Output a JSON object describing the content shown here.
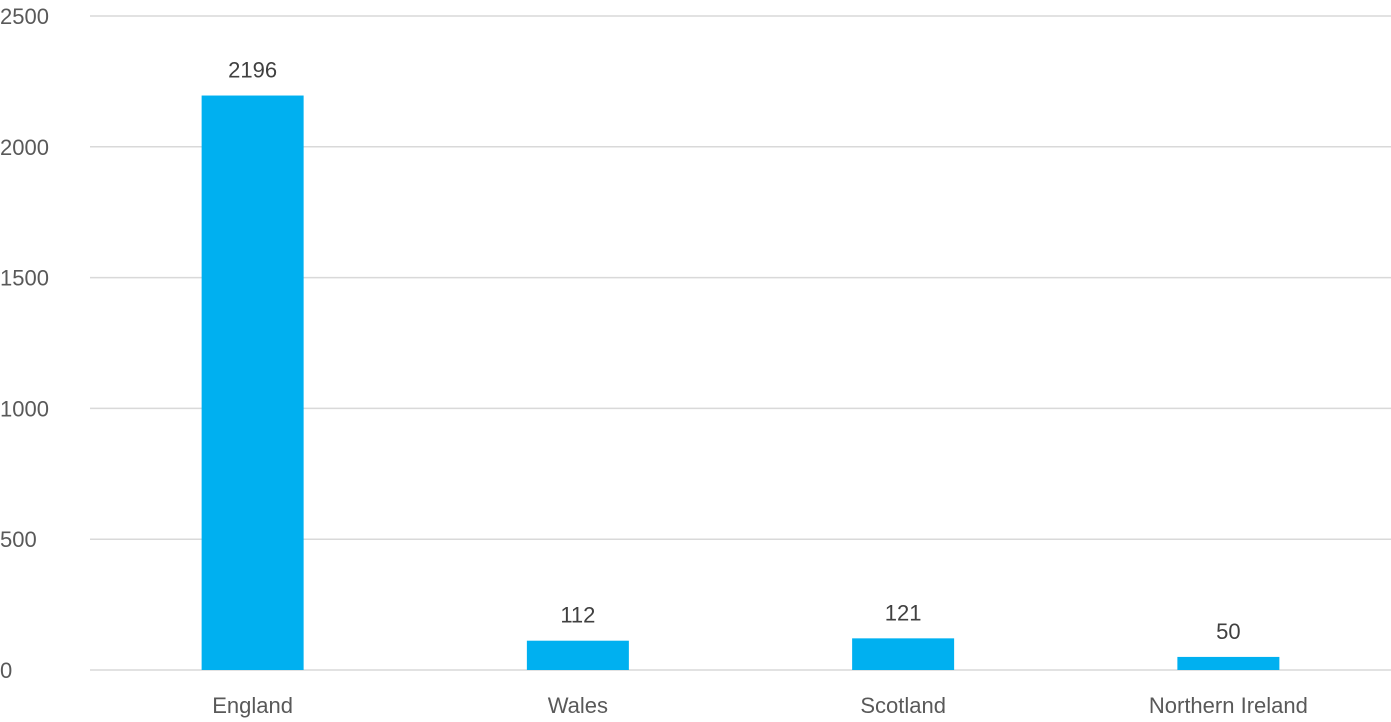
{
  "chart_data": {
    "type": "bar",
    "title": "",
    "xlabel": "",
    "ylabel": "",
    "categories": [
      "England",
      "Wales",
      "Scotland",
      "Northern Ireland"
    ],
    "values": [
      2196,
      112,
      121,
      50
    ],
    "data_labels": [
      "2196",
      "112",
      "121",
      "50"
    ],
    "ylim": [
      0,
      2500
    ],
    "yticks": [
      0,
      500,
      1000,
      1500,
      2000,
      2500
    ],
    "ytick_labels": [
      "0",
      "500",
      "1000",
      "1500",
      "2000",
      "2500"
    ],
    "grid": true,
    "legend": "none",
    "bar_color": "#00B0F0",
    "grid_color": "#D9D9D9",
    "text_color": "#595959"
  }
}
